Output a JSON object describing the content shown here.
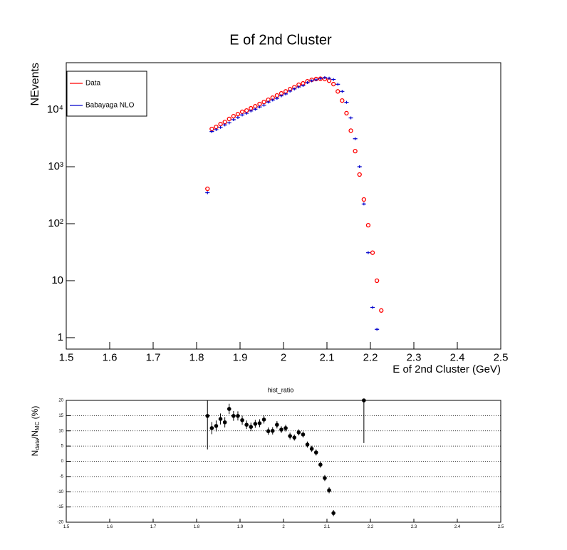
{
  "chart_data": [
    {
      "type": "scatter",
      "title": "E of 2nd Cluster",
      "x_label": "E of 2nd Cluster (GeV)",
      "y_label": "NEvents",
      "log_y": true,
      "legend": "top-left",
      "x": [
        1.825,
        1.835,
        1.845,
        1.855,
        1.865,
        1.875,
        1.885,
        1.895,
        1.905,
        1.915,
        1.925,
        1.935,
        1.945,
        1.955,
        1.965,
        1.975,
        1.985,
        1.995,
        2.005,
        2.015,
        2.025,
        2.035,
        2.045,
        2.055,
        2.065,
        2.075,
        2.085,
        2.095,
        2.105,
        2.115,
        2.125,
        2.135,
        2.145,
        2.155,
        2.165,
        2.175,
        2.185,
        2.195,
        2.205,
        2.215,
        2.225
      ],
      "series": [
        {
          "name": "Data",
          "color": "#ff0000",
          "values": [
            410,
            4600,
            5000,
            5600,
            6100,
            6900,
            7700,
            8400,
            9200,
            9700,
            10600,
            11500,
            12600,
            13700,
            15000,
            16300,
            17800,
            19400,
            21000,
            23000,
            25000,
            27500,
            29000,
            31600,
            33500,
            34600,
            35000,
            34600,
            32400,
            28200,
            21000,
            14500,
            8700,
            4300,
            1880,
            730,
            266,
            94,
            31,
            10,
            3
          ]
        },
        {
          "name": "Babayaga NLO",
          "color": "#0000cc",
          "values": [
            350,
            4150,
            4480,
            4920,
            5410,
            5890,
            6700,
            7310,
            8110,
            8660,
            9520,
            10240,
            11200,
            12050,
            13650,
            14820,
            15890,
            17570,
            18940,
            21230,
            23190,
            25110,
            26650,
            29950,
            32180,
            33630,
            35390,
            36610,
            35800,
            33980,
            28000,
            21000,
            13500,
            7200,
            3100,
            1000,
            222,
            31,
            3.4,
            1.4,
            null
          ]
        }
      ],
      "xlim": [
        1.5,
        2.5
      ],
      "xticks": [
        1.5,
        1.6,
        1.7,
        1.8,
        1.9,
        2,
        2.1,
        2.2,
        2.3,
        2.4,
        2.5
      ],
      "ylim": [
        0.63,
        67000
      ],
      "yticks": [
        1,
        10,
        {
          "value": 100,
          "label": "10²"
        },
        {
          "value": 1000,
          "label": "10³"
        },
        {
          "value": 10000,
          "label": "10⁴"
        }
      ]
    },
    {
      "type": "errorbar",
      "title": "hist_ratio",
      "y_label": "N_data/N_MC (%)",
      "color": "#000000",
      "grid": true,
      "x": [
        1.825,
        1.835,
        1.845,
        1.855,
        1.865,
        1.875,
        1.885,
        1.895,
        1.905,
        1.915,
        1.925,
        1.935,
        1.945,
        1.955,
        1.965,
        1.975,
        1.985,
        1.995,
        2.005,
        2.015,
        2.025,
        2.035,
        2.045,
        2.055,
        2.065,
        2.075,
        2.085,
        2.095,
        2.105,
        2.115,
        2.185
      ],
      "values": [
        14.9,
        10.9,
        11.6,
        13.9,
        12.8,
        17.2,
        14.9,
        14.9,
        13.5,
        12,
        11.3,
        12.3,
        12.5,
        13.7,
        9.9,
        10,
        12,
        10.4,
        10.9,
        8.3,
        7.8,
        9.5,
        8.8,
        5.5,
        4.1,
        2.9,
        -1.1,
        -5.5,
        -9.5,
        -17,
        20
      ],
      "errors": [
        11,
        2,
        1.8,
        1.8,
        1.7,
        1.7,
        1.6,
        1.5,
        1.5,
        1.4,
        1.4,
        1.3,
        1.3,
        1.3,
        1.2,
        1.2,
        1.2,
        1.1,
        1.1,
        1.1,
        1,
        1,
        1,
        1,
        1,
        1,
        1,
        1,
        1,
        1,
        14
      ],
      "xlim": [
        1.5,
        2.5
      ],
      "xticks": [
        1.5,
        1.6,
        1.7,
        1.8,
        1.9,
        2,
        2.1,
        2.2,
        2.3,
        2.4,
        2.5
      ],
      "ylim": [
        -20,
        20
      ],
      "yticks": [
        -20,
        -15,
        -10,
        -5,
        0,
        5,
        10,
        15,
        20
      ]
    }
  ]
}
